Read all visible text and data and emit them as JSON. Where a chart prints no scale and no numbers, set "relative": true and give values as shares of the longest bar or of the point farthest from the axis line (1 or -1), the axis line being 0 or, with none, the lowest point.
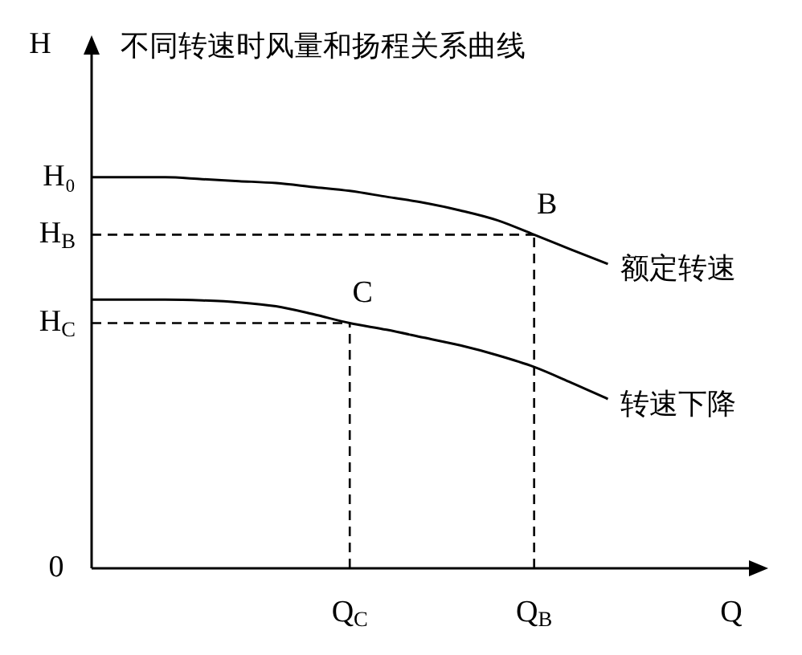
{
  "chart_data": {
    "type": "line",
    "title": "不同转速时风量和扬程关系曲线",
    "xlabel": "Q",
    "ylabel": "H",
    "relative": true,
    "categories": [
      null,
      null,
      null,
      null,
      null,
      null,
      null,
      "Q$_{C}$",
      null,
      null,
      null,
      null,
      "Q$_{B}$",
      null,
      null,
      null,
      null,
      null,
      null
    ],
    "marker": "none",
    "line_style": "solid",
    "series": [
      {
        "name": "额定转速",
        "color": "#000000",
        "values": [
          1,
          1,
          1,
          0.995,
          0.99,
          0.985,
          0.975,
          0.965,
          0.95,
          0.935,
          0.915,
          0.89,
          0.853,
          0.815,
          0.778,
          null,
          null,
          null,
          null
        ]
      },
      {
        "name": "转速下降",
        "color": "#000000",
        "values": [
          0.687,
          0.687,
          0.687,
          0.685,
          0.68,
          0.67,
          0.65,
          0.627,
          0.61,
          0.59,
          0.57,
          0.545,
          0.515,
          0.475,
          0.433,
          null,
          null,
          null,
          null
        ]
      }
    ],
    "ref_lines": [
      {
        "axis": "y",
        "value": 0.853,
        "label": "H$_{B}$",
        "line_style": "dashed"
      },
      {
        "axis": "x",
        "value": "Q$_{B}$",
        "line_style": "dashed"
      },
      {
        "axis": "y",
        "value": 0.627,
        "label": "H$_{C}$",
        "line_style": "dashed"
      },
      {
        "axis": "x",
        "value": "Q$_{C}$",
        "line_style": "dashed"
      }
    ],
    "annotations": [
      "0",
      "H₀",
      {
        "text": "B",
        "y": 0.853
      },
      {
        "text": "C",
        "y": 0.627
      }
    ]
  }
}
